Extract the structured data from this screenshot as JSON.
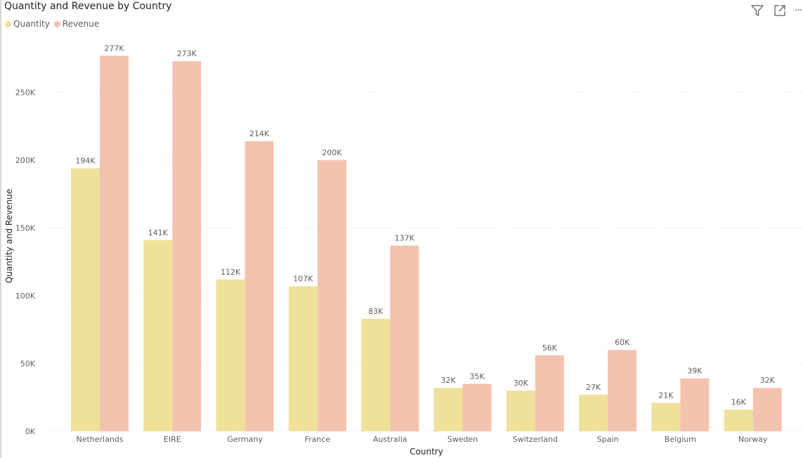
{
  "visual": {
    "title": "Quantity and Revenue by Country",
    "more_options": "···"
  },
  "icons": {
    "filter": "filter-icon",
    "focus": "focus-mode-icon",
    "more": "more-options-icon"
  },
  "colors": {
    "quantity": "#EFE09A",
    "revenue": "#F4C3B0",
    "grid": "#e3e3e3",
    "text": "#605e5c"
  },
  "chart_data": {
    "type": "bar",
    "title": "Quantity and Revenue by Country",
    "xlabel": "Country",
    "ylabel": "Quantity and Revenue",
    "categories": [
      "Netherlands",
      "EIRE",
      "Germany",
      "France",
      "Australia",
      "Sweden",
      "Switzerland",
      "Spain",
      "Belgium",
      "Norway"
    ],
    "series": [
      {
        "name": "Quantity",
        "values": [
          194000,
          141000,
          112000,
          107000,
          83000,
          32000,
          30000,
          27000,
          21000,
          16000
        ],
        "labels": [
          "194K",
          "141K",
          "112K",
          "107K",
          "83K",
          "32K",
          "30K",
          "27K",
          "21K",
          "16K"
        ]
      },
      {
        "name": "Revenue",
        "values": [
          277000,
          273000,
          214000,
          200000,
          137000,
          35000,
          56000,
          60000,
          39000,
          32000
        ],
        "labels": [
          "277K",
          "273K",
          "214K",
          "200K",
          "137K",
          "35K",
          "56K",
          "60K",
          "39K",
          "32K"
        ]
      }
    ],
    "ylim": [
      0,
      277000
    ],
    "yticks": [
      0,
      50000,
      100000,
      150000,
      200000,
      250000
    ],
    "ytick_labels": [
      "0K",
      "50K",
      "100K",
      "150K",
      "200K",
      "250K"
    ],
    "grid": true,
    "legend": "top-left"
  }
}
